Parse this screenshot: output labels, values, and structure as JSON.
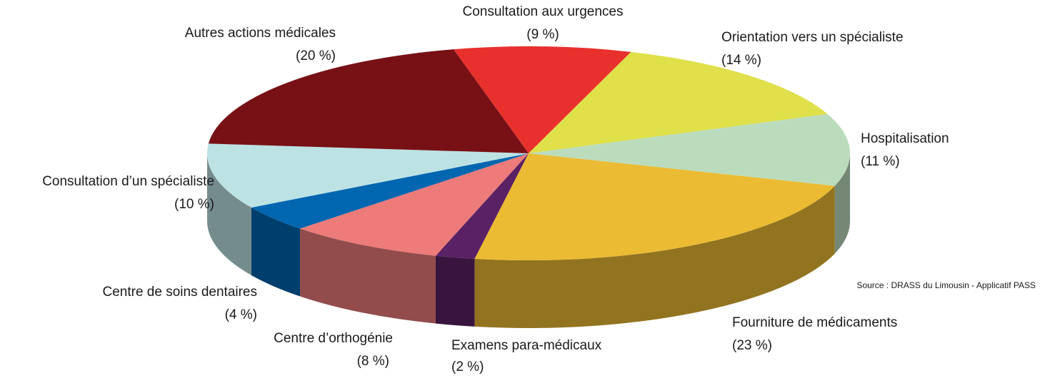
{
  "chart_data": {
    "type": "pie3d",
    "categories": [
      "Consultation aux urgences",
      "Orientation vers un spécialiste",
      "Hospitalisation",
      "Fourniture de médicaments",
      "Examens para-médicaux",
      "Centre d’orthogénie",
      "Centre de soins dentaires",
      "Consultation d’un spécialiste",
      "Autres actions médicales"
    ],
    "values": [
      9,
      14,
      11,
      23,
      2,
      8,
      4,
      10,
      20
    ],
    "value_labels": [
      "(9 %)",
      "(14 %)",
      "(11 %)",
      "(23 %)",
      "(2 %)",
      "(8 %)",
      "(4 %)",
      "(10 %)",
      "(20 %)"
    ],
    "colors": [
      "#e8312d",
      "#dfe04a",
      "#bbdcbc",
      "#ebbb33",
      "#5a2164",
      "#ec7b7a",
      "#0066b0",
      "#bde2e4",
      "#771116"
    ],
    "source": "Source : DRASS du Limousin - Applicatif PASS"
  }
}
